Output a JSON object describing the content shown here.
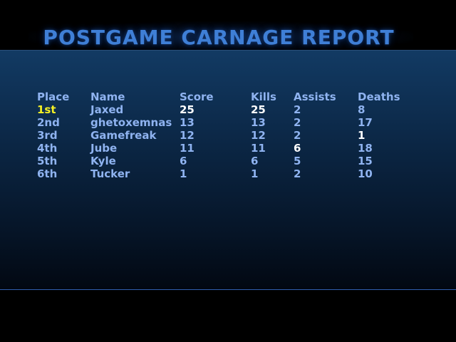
{
  "screen": {
    "title": "POSTGAME CARNAGE REPORT"
  },
  "table": {
    "headers": {
      "place": "Place",
      "name": "Name",
      "score": "Score",
      "kills": "Kills",
      "assists": "Assists",
      "deaths": "Deaths"
    },
    "rows": [
      {
        "place": "1st",
        "name": "Jaxed",
        "score": "25",
        "kills": "25",
        "assists": "2",
        "deaths": "8"
      },
      {
        "place": "2nd",
        "name": "ghetoxemnas",
        "score": "13",
        "kills": "13",
        "assists": "2",
        "deaths": "17"
      },
      {
        "place": "3rd",
        "name": "Gamefreak",
        "score": "12",
        "kills": "12",
        "assists": "2",
        "deaths": "1"
      },
      {
        "place": "4th",
        "name": "Jube",
        "score": "11",
        "kills": "11",
        "assists": "6",
        "deaths": "18"
      },
      {
        "place": "5th",
        "name": "Kyle",
        "score": "6",
        "kills": "6",
        "assists": "5",
        "deaths": "15"
      },
      {
        "place": "6th",
        "name": "Tucker",
        "score": "1",
        "kills": "1",
        "assists": "2",
        "deaths": "10"
      }
    ]
  },
  "colors": {
    "title": "#3f7fd6",
    "text": "#8fb3f0",
    "first_place": "#f4f025",
    "category_leader": "#ffffff",
    "panel_top": "#123a63",
    "panel_bottom": "#020812"
  }
}
